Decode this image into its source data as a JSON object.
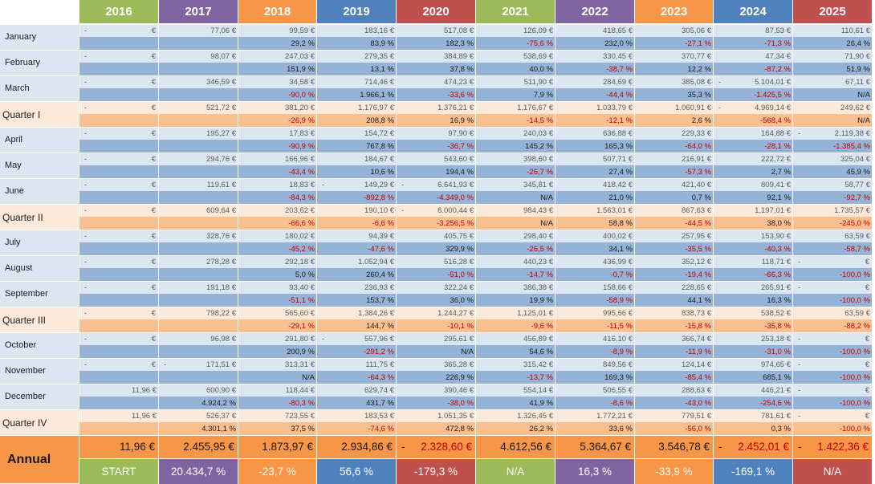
{
  "years": [
    "2016",
    "2017",
    "2018",
    "2019",
    "2020",
    "2021",
    "2022",
    "2023",
    "2024",
    "2025"
  ],
  "colors": {
    "year_header": [
      "#9BBB59",
      "#8064A2",
      "#F79646",
      "#4F81BD",
      "#C0504D",
      "#9BBB59",
      "#8064A2",
      "#F79646",
      "#4F81BD",
      "#C0504D"
    ],
    "month_row": "#DCE6F1",
    "month_pct_row": "#95B3D7",
    "quarter_row": "#FDE9D9",
    "quarter_pct_row": "#FABF8F",
    "annual_value_row": "#F79646",
    "negative_text": "#C00000"
  },
  "currency_symbol": "€",
  "dash_symbol": "-",
  "annual": {
    "label": "Annual",
    "values": [
      {
        "text": "11,96 €",
        "neg": false
      },
      {
        "text": "2.455,95 €",
        "neg": false
      },
      {
        "text": "1.873,97 €",
        "neg": false
      },
      {
        "text": "2.934,86 €",
        "neg": false
      },
      {
        "text": "2.328,60 €",
        "neg": true
      },
      {
        "text": "4.612,56 €",
        "neg": false
      },
      {
        "text": "5.364,67 €",
        "neg": false
      },
      {
        "text": "3.546,78 €",
        "neg": false
      },
      {
        "text": "2.452,01 €",
        "neg": true
      },
      {
        "text": "1.422,36 €",
        "neg": true
      }
    ],
    "changes": [
      "START",
      "20.434,7 %",
      "-23,7 %",
      "56,6 %",
      "-179,3 %",
      "N/A",
      "16,3 %",
      "-33,9 %",
      "-169,1 %",
      "N/A"
    ]
  },
  "rows": [
    {
      "label": "January",
      "type": "month",
      "values": [
        {
          "d": 1,
          "e": 1
        },
        {
          "t": "77,06 €"
        },
        {
          "t": "99,59 €"
        },
        {
          "t": "183,16 €"
        },
        {
          "t": "517,08 €"
        },
        {
          "t": "126,09 €"
        },
        {
          "t": "418,65 €"
        },
        {
          "t": "305,06 €"
        },
        {
          "t": "87,53 €"
        },
        {
          "t": "110,61 €"
        }
      ],
      "pct": [
        "",
        "",
        "29,2 %",
        "83,9 %",
        "182,3 %",
        "-75,6 %",
        "232,0 %",
        "-27,1 %",
        "-71,3 %",
        "26,4 %"
      ]
    },
    {
      "label": "February",
      "type": "month",
      "values": [
        {
          "d": 1,
          "e": 1
        },
        {
          "t": "98,07 €"
        },
        {
          "t": "247,03 €"
        },
        {
          "t": "279,35 €"
        },
        {
          "t": "384,89 €"
        },
        {
          "t": "538,69 €"
        },
        {
          "t": "330,45 €"
        },
        {
          "t": "370,77 €"
        },
        {
          "t": "47,34 €"
        },
        {
          "t": "71,90 €"
        }
      ],
      "pct": [
        "",
        "",
        "151,9 %",
        "13,1 %",
        "37,8 %",
        "40,0 %",
        "-38,7 %",
        "12,2 %",
        "-87,2 %",
        "51,9 %"
      ]
    },
    {
      "label": "March",
      "type": "month",
      "values": [
        {
          "d": 1,
          "e": 1
        },
        {
          "t": "346,59 €"
        },
        {
          "t": "34,58 €"
        },
        {
          "t": "714,46 €"
        },
        {
          "t": "474,23 €"
        },
        {
          "t": "511,90 €"
        },
        {
          "t": "284,69 €"
        },
        {
          "t": "385,08 €",
          "dr": 1
        },
        {
          "t": "5.104,01 €",
          "d": 1
        },
        {
          "t": "67,11 €"
        }
      ],
      "pct": [
        "",
        "",
        "-90,0 %",
        "1.966,1 %",
        "-33,6 %",
        "7,9 %",
        "-44,4 %",
        "35,3 %",
        "-1.425,5 %",
        "N/A"
      ]
    },
    {
      "label": "Quarter I",
      "type": "quarter",
      "values": [
        {
          "d": 1,
          "e": 1
        },
        {
          "t": "521,72 €"
        },
        {
          "t": "381,20 €"
        },
        {
          "t": "1.176,97 €"
        },
        {
          "t": "1.376,21 €"
        },
        {
          "t": "1.176,67 €"
        },
        {
          "t": "1.033,79 €"
        },
        {
          "t": "1.060,91 €",
          "dr": 1
        },
        {
          "t": "4.969,14 €",
          "d": 1
        },
        {
          "t": "249,62 €"
        }
      ],
      "pct": [
        "",
        "",
        "-26,9 %",
        "208,8 %",
        "16,9 %",
        "-14,5 %",
        "-12,1 %",
        "2,6 %",
        "-568,4 %",
        "N/A"
      ]
    },
    {
      "label": "April",
      "type": "month",
      "values": [
        {
          "d": 1,
          "e": 1
        },
        {
          "t": "195,27 €"
        },
        {
          "t": "17,83 €"
        },
        {
          "t": "154,72 €"
        },
        {
          "t": "97,90 €"
        },
        {
          "t": "240,03 €"
        },
        {
          "t": "636,88 €"
        },
        {
          "t": "229,33 €"
        },
        {
          "t": "164,88 €",
          "dr": 1
        },
        {
          "t": "2.119,38 €",
          "d": 1
        }
      ],
      "pct": [
        "",
        "",
        "-90,9 %",
        "767,8 %",
        "-36,7 %",
        "145,2 %",
        "165,3 %",
        "-64,0 %",
        "-28,1 %",
        "-1.385,4 %"
      ]
    },
    {
      "label": "May",
      "type": "month",
      "values": [
        {
          "d": 1,
          "e": 1
        },
        {
          "t": "294,76 €"
        },
        {
          "t": "166,96 €"
        },
        {
          "t": "184,67 €"
        },
        {
          "t": "543,60 €"
        },
        {
          "t": "398,60 €"
        },
        {
          "t": "507,71 €"
        },
        {
          "t": "216,91 €"
        },
        {
          "t": "222,72 €"
        },
        {
          "t": "325,04 €"
        }
      ],
      "pct": [
        "",
        "",
        "-43,4 %",
        "10,6 %",
        "194,4 %",
        "-26,7 %",
        "27,4 %",
        "-57,3 %",
        "2,7 %",
        "45,9 %"
      ]
    },
    {
      "label": "June",
      "type": "month",
      "values": [
        {
          "d": 1,
          "e": 1
        },
        {
          "t": "119,61 €"
        },
        {
          "t": "18,83 €",
          "dr": 1
        },
        {
          "t": "149,29 €",
          "d": 1,
          "dr": 1
        },
        {
          "t": "6.641,93 €",
          "d": 1
        },
        {
          "t": "345,81 €"
        },
        {
          "t": "418,42 €"
        },
        {
          "t": "421,40 €"
        },
        {
          "t": "809,41 €"
        },
        {
          "t": "58,77 €"
        }
      ],
      "pct": [
        "",
        "",
        "-84,3 %",
        "-892,8 %",
        "-4.349,0 %",
        "N/A",
        "21,0 %",
        "0,7 %",
        "92,1 %",
        "-92,7 %"
      ]
    },
    {
      "label": "Quarter II",
      "type": "quarter",
      "values": [
        {
          "d": 1,
          "e": 1
        },
        {
          "t": "609,64 €"
        },
        {
          "t": "203,62 €"
        },
        {
          "t": "190,10 €",
          "dr": 1
        },
        {
          "t": "6.000,44 €",
          "d": 1
        },
        {
          "t": "984,43 €"
        },
        {
          "t": "1.563,01 €"
        },
        {
          "t": "867,63 €"
        },
        {
          "t": "1.197,01 €"
        },
        {
          "t": "1.735,57 €"
        }
      ],
      "pct": [
        "",
        "",
        "-66,6 %",
        "-6,6 %",
        "-3.256,5 %",
        "N/A",
        "58,8 %",
        "-44,5 %",
        "38,0 %",
        "-245,0 %"
      ]
    },
    {
      "label": "July",
      "type": "month",
      "values": [
        {
          "d": 1,
          "e": 1
        },
        {
          "t": "328,76 €"
        },
        {
          "t": "180,02 €"
        },
        {
          "t": "94,39 €"
        },
        {
          "t": "405,75 €"
        },
        {
          "t": "298,40 €"
        },
        {
          "t": "400,02 €"
        },
        {
          "t": "257,95 €"
        },
        {
          "t": "153,90 €"
        },
        {
          "t": "63,59 €"
        }
      ],
      "pct": [
        "",
        "",
        "-45,2 %",
        "-47,6 %",
        "329,9 %",
        "-26,5 %",
        "34,1 %",
        "-35,5 %",
        "-40,3 %",
        "-58,7 %"
      ]
    },
    {
      "label": "August",
      "type": "month",
      "values": [
        {
          "d": 1,
          "e": 1
        },
        {
          "t": "278,28 €"
        },
        {
          "t": "292,18 €"
        },
        {
          "t": "1.052,94 €"
        },
        {
          "t": "516,28 €"
        },
        {
          "t": "440,23 €"
        },
        {
          "t": "436,99 €"
        },
        {
          "t": "352,12 €"
        },
        {
          "t": "118,71 €"
        },
        {
          "d": 1,
          "e": 1
        }
      ],
      "pct": [
        "",
        "",
        "5,0 %",
        "260,4 %",
        "-51,0 %",
        "-14,7 %",
        "-0,7 %",
        "-19,4 %",
        "-66,3 %",
        "-100,0 %"
      ]
    },
    {
      "label": "September",
      "type": "month",
      "values": [
        {
          "d": 1,
          "e": 1
        },
        {
          "t": "191,18 €"
        },
        {
          "t": "93,40 €"
        },
        {
          "t": "236,93 €"
        },
        {
          "t": "322,24 €"
        },
        {
          "t": "386,38 €"
        },
        {
          "t": "158,66 €"
        },
        {
          "t": "228,65 €"
        },
        {
          "t": "265,91 €"
        },
        {
          "d": 1,
          "e": 1
        }
      ],
      "pct": [
        "",
        "",
        "-51,1 %",
        "153,7 %",
        "36,0 %",
        "19,9 %",
        "-58,9 %",
        "44,1 %",
        "16,3 %",
        "-100,0 %"
      ]
    },
    {
      "label": "Quarter III",
      "type": "quarter",
      "values": [
        {
          "d": 1,
          "e": 1
        },
        {
          "t": "798,22 €"
        },
        {
          "t": "565,60 €"
        },
        {
          "t": "1.384,26 €"
        },
        {
          "t": "1.244,27 €"
        },
        {
          "t": "1.125,01 €"
        },
        {
          "t": "995,66 €"
        },
        {
          "t": "838,73 €"
        },
        {
          "t": "538,52 €"
        },
        {
          "t": "63,59 €"
        }
      ],
      "pct": [
        "",
        "",
        "-29,1 %",
        "144,7 %",
        "-10,1 %",
        "-9,6 %",
        "-11,5 %",
        "-15,8 %",
        "-35,8 %",
        "-88,2 %"
      ]
    },
    {
      "label": "October",
      "type": "month",
      "values": [
        {
          "d": 1,
          "e": 1
        },
        {
          "t": "96,98 €"
        },
        {
          "t": "291,80 €",
          "dr": 1
        },
        {
          "t": "557,96 €",
          "d": 1
        },
        {
          "t": "295,61 €"
        },
        {
          "t": "456,89 €"
        },
        {
          "t": "416,10 €"
        },
        {
          "t": "366,74 €"
        },
        {
          "t": "253,18 €"
        },
        {
          "d": 1,
          "e": 1
        }
      ],
      "pct": [
        "",
        "",
        "200,9 %",
        "-291,2 %",
        "N/A",
        "54,6 %",
        "-8,9 %",
        "-11,9 %",
        "-31,0 %",
        "-100,0 %"
      ]
    },
    {
      "label": "November",
      "type": "month",
      "values": [
        {
          "d": 1,
          "e": 1,
          "dr": 1
        },
        {
          "t": "171,51 €",
          "d": 1
        },
        {
          "t": "313,31 €"
        },
        {
          "t": "111,75 €"
        },
        {
          "t": "365,28 €"
        },
        {
          "t": "315,42 €"
        },
        {
          "t": "849,56 €"
        },
        {
          "t": "124,14 €"
        },
        {
          "t": "974,65 €"
        },
        {
          "d": 1,
          "e": 1
        }
      ],
      "pct": [
        "",
        "",
        "N/A",
        "-64,3 %",
        "226,9 %",
        "-13,7 %",
        "169,3 %",
        "-85,4 %",
        "685,1 %",
        "-100,0 %"
      ]
    },
    {
      "label": "December",
      "type": "month",
      "values": [
        {
          "t": "11,96 €"
        },
        {
          "t": "600,90 €"
        },
        {
          "t": "118,44 €"
        },
        {
          "t": "629,74 €"
        },
        {
          "t": "390,46 €"
        },
        {
          "t": "554,14 €"
        },
        {
          "t": "506,55 €"
        },
        {
          "t": "288,63 €"
        },
        {
          "t": "446,21 €"
        },
        {
          "d": 1,
          "e": 1
        }
      ],
      "pct": [
        "",
        "4.924,2 %",
        "-80,3 %",
        "431,7 %",
        "-38,0 %",
        "41,9 %",
        "-8,6 %",
        "-43,0 %",
        "-254,6 %",
        "-100,0 %"
      ]
    },
    {
      "label": "Quarter IV",
      "type": "quarter",
      "values": [
        {
          "t": "11,96 €"
        },
        {
          "t": "526,37 €"
        },
        {
          "t": "723,55 €"
        },
        {
          "t": "183,53 €"
        },
        {
          "t": "1.051,35 €"
        },
        {
          "t": "1.326,45 €"
        },
        {
          "t": "1.772,21 €"
        },
        {
          "t": "779,51 €"
        },
        {
          "t": "781,61 €"
        },
        {
          "d": 1,
          "e": 1
        }
      ],
      "pct": [
        "",
        "4.301,1 %",
        "37,5 %",
        "-74,6 %",
        "472,8 %",
        "26,2 %",
        "33,6 %",
        "-56,0 %",
        "0,3 %",
        "-100,0 %"
      ]
    }
  ]
}
